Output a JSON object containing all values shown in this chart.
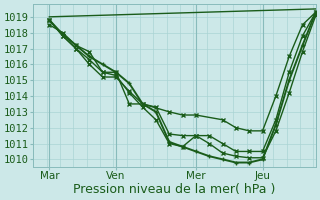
{
  "title": "",
  "xlabel": "Pression niveau de la mer( hPa )",
  "ylabel": "",
  "background_color": "#cce8e8",
  "grid_color": "#aad4d4",
  "line_color": "#1a5c1a",
  "ylim": [
    1009.5,
    1019.8
  ],
  "yticks": [
    1010,
    1011,
    1012,
    1013,
    1014,
    1015,
    1016,
    1017,
    1018,
    1019
  ],
  "xlim": [
    -0.1,
    10.5
  ],
  "xtick_labels": [
    "Mar",
    "Ven",
    "Mer",
    "Jeu"
  ],
  "xtick_positions": [
    0.5,
    3.0,
    6.0,
    8.5
  ],
  "vlines": [
    0.5,
    3.0,
    6.0,
    8.5
  ],
  "lines": [
    {
      "x": [
        0.5,
        10.5
      ],
      "y": [
        1019.0,
        1019.5
      ],
      "marker": "none",
      "lw": 1.0,
      "ls": "-"
    },
    {
      "x": [
        0.5,
        1.0,
        1.5,
        2.0,
        2.5,
        3.0,
        3.5,
        4.0,
        4.5,
        5.0,
        5.5,
        6.0,
        6.5,
        7.0,
        7.5,
        8.0,
        8.5,
        9.0,
        9.5,
        10.0,
        10.5
      ],
      "y": [
        1018.8,
        1017.9,
        1017.2,
        1016.5,
        1016.0,
        1015.5,
        1014.8,
        1013.5,
        1013.0,
        1011.1,
        1010.8,
        1010.5,
        1010.2,
        1010.0,
        1009.8,
        1009.8,
        1010.0,
        1012.2,
        1015.0,
        1017.2,
        1019.3
      ],
      "marker": "+",
      "lw": 1.4,
      "ls": "-"
    },
    {
      "x": [
        0.5,
        1.0,
        1.5,
        2.0,
        2.5,
        3.0,
        3.5,
        4.0,
        4.5,
        5.0,
        5.5,
        6.0,
        6.5,
        7.0,
        7.5,
        8.0,
        8.5,
        9.0,
        9.5,
        10.0,
        10.5
      ],
      "y": [
        1018.8,
        1017.8,
        1017.0,
        1016.3,
        1015.5,
        1015.3,
        1014.2,
        1013.3,
        1012.5,
        1011.0,
        1010.8,
        1011.5,
        1011.0,
        1010.4,
        1010.2,
        1010.1,
        1010.1,
        1011.8,
        1014.2,
        1016.8,
        1019.1
      ],
      "marker": "x",
      "lw": 1.0,
      "ls": "-"
    },
    {
      "x": [
        0.5,
        1.0,
        1.5,
        2.0,
        2.5,
        3.0,
        3.5,
        4.0,
        4.5,
        5.0,
        5.5,
        6.0,
        6.5,
        7.0,
        7.5,
        8.0,
        8.5,
        9.0,
        9.5,
        10.0,
        10.5
      ],
      "y": [
        1018.8,
        1017.8,
        1017.0,
        1016.0,
        1015.2,
        1015.2,
        1014.3,
        1013.5,
        1013.3,
        1011.6,
        1011.5,
        1011.5,
        1011.5,
        1011.0,
        1010.5,
        1010.5,
        1010.5,
        1012.5,
        1015.5,
        1017.8,
        1019.3
      ],
      "marker": "x",
      "lw": 1.0,
      "ls": "-"
    },
    {
      "x": [
        0.5,
        1.0,
        1.5,
        2.0,
        2.5,
        3.0,
        3.5,
        4.0,
        5.0,
        5.5,
        6.0,
        7.0,
        7.5,
        8.0,
        8.5,
        9.0,
        9.5,
        10.0,
        10.5
      ],
      "y": [
        1018.5,
        1018.0,
        1017.2,
        1016.8,
        1015.5,
        1015.5,
        1013.5,
        1013.5,
        1013.0,
        1012.8,
        1012.8,
        1012.5,
        1012.0,
        1011.8,
        1011.8,
        1014.0,
        1016.5,
        1018.5,
        1019.3
      ],
      "marker": "x",
      "lw": 1.0,
      "ls": "-"
    }
  ],
  "xlabel_fontsize": 9,
  "tick_fontsize": 7.5
}
